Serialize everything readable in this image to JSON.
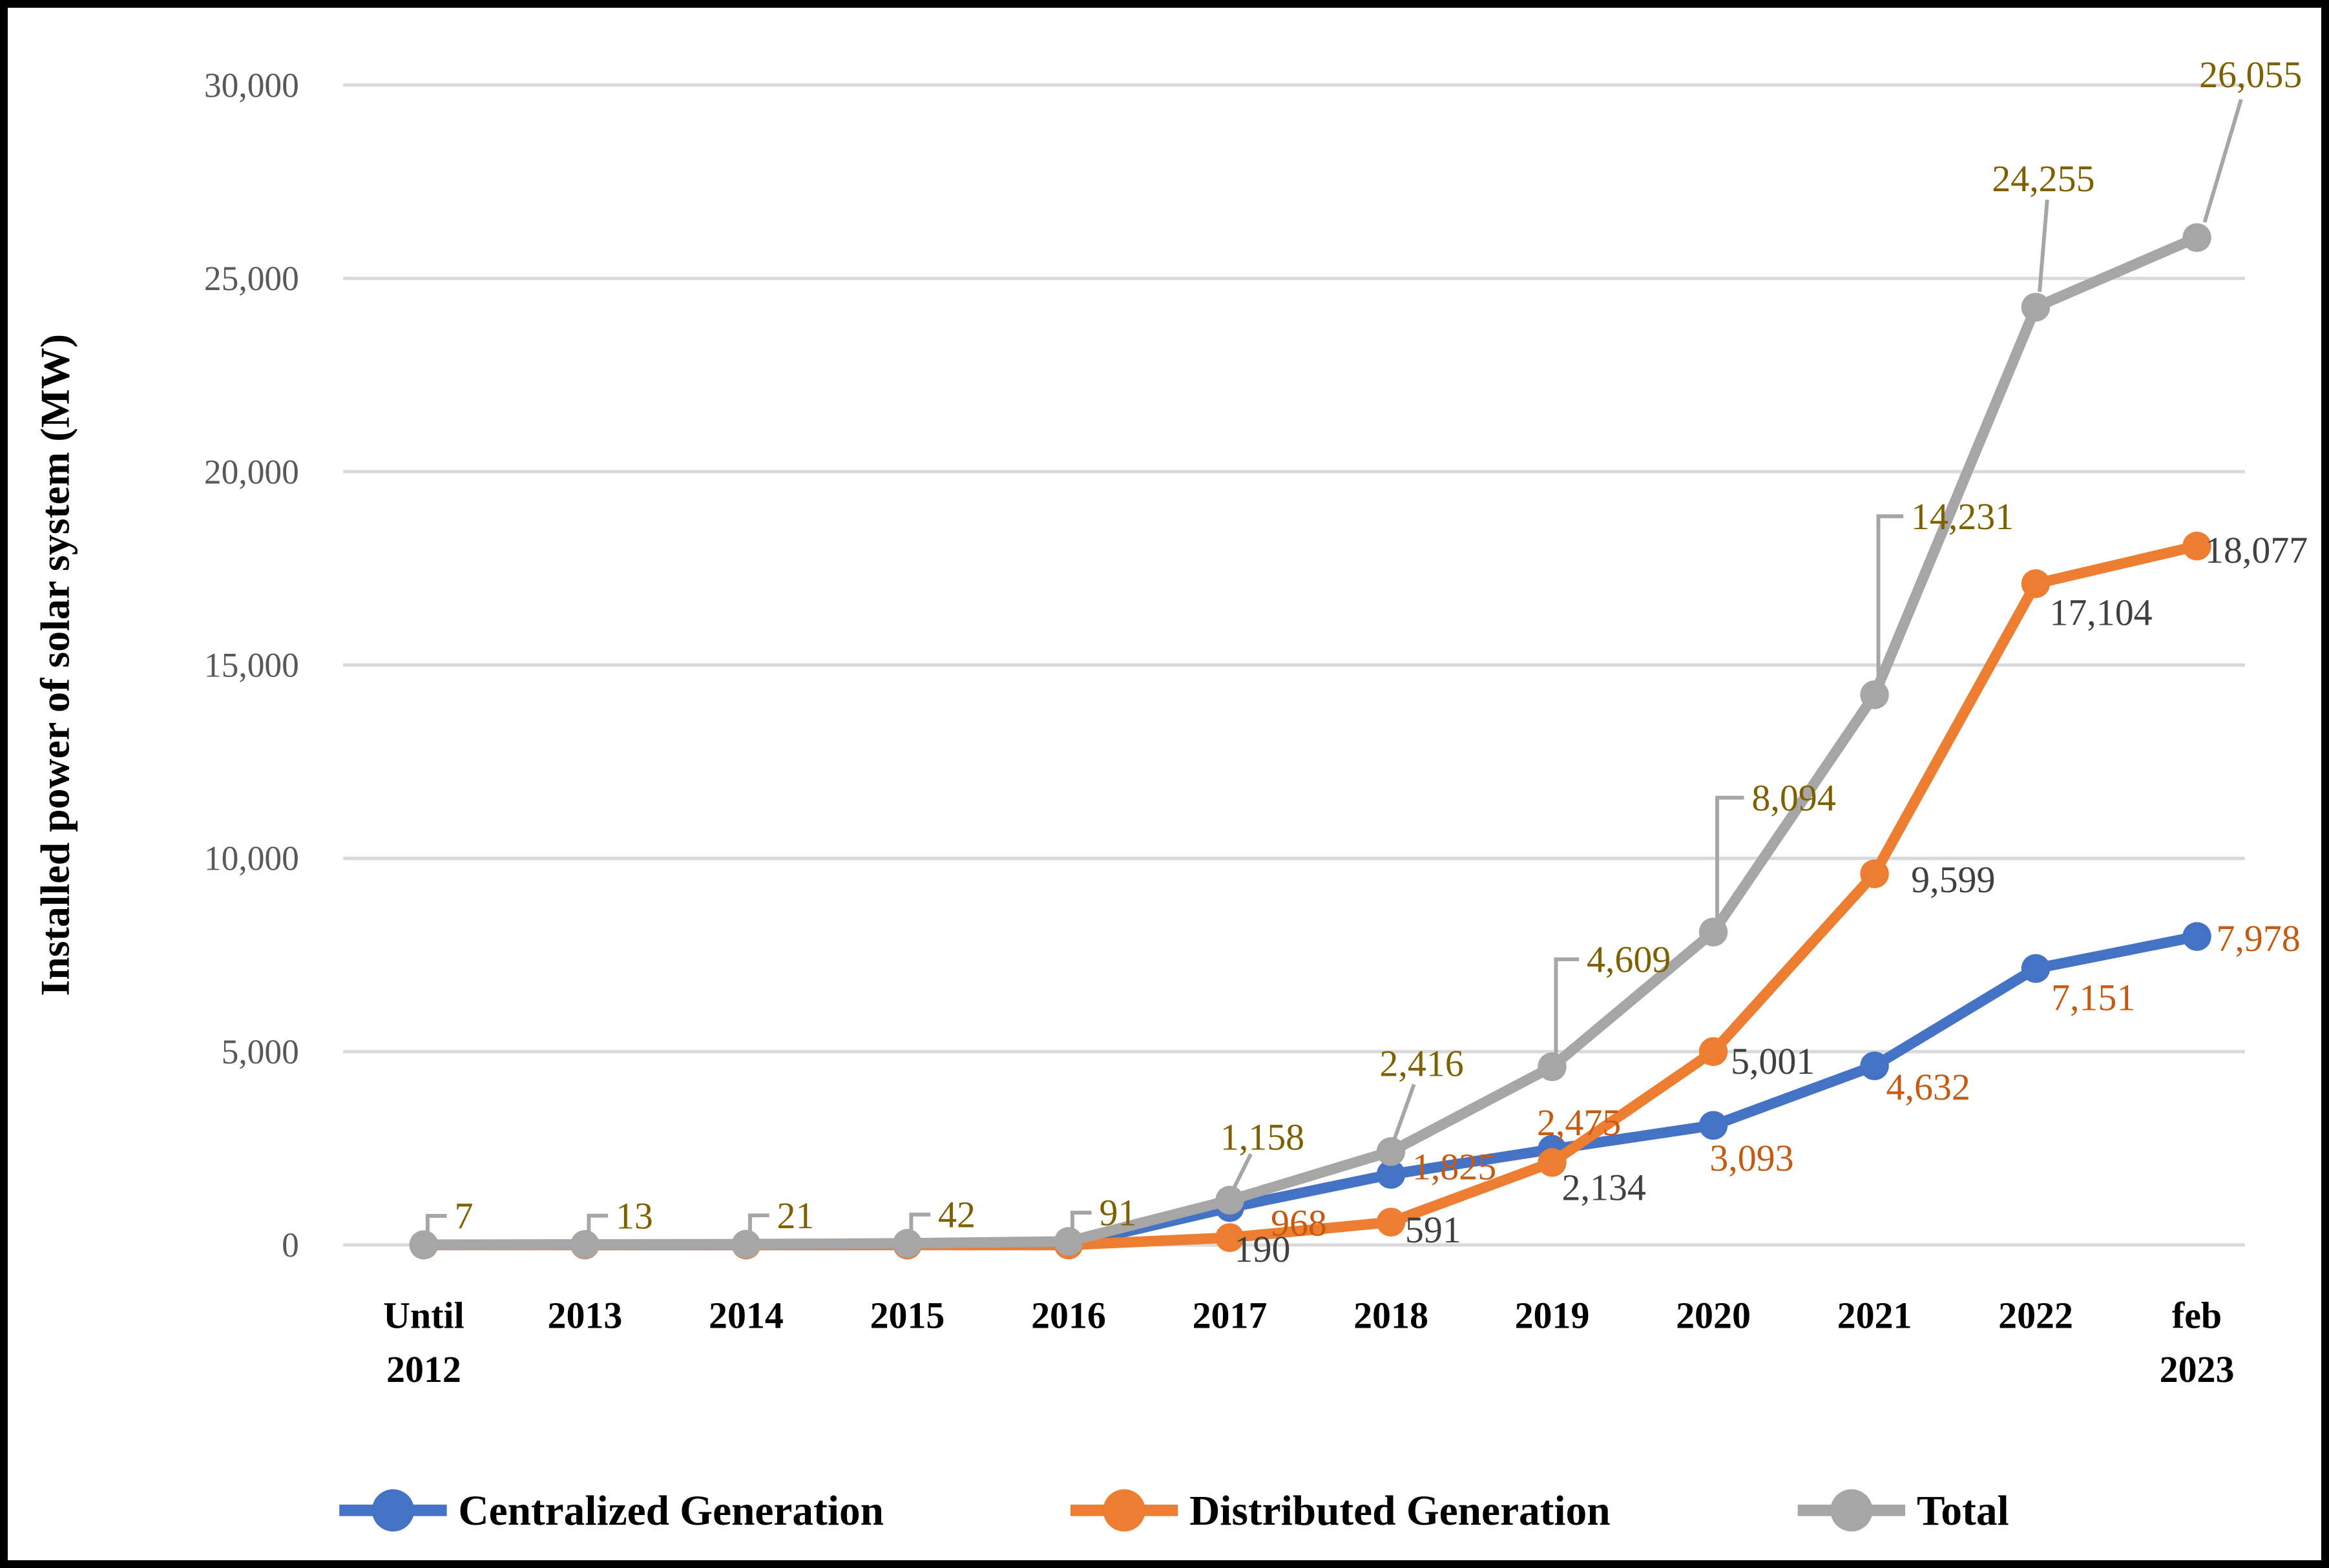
{
  "figure": {
    "kind": "excel-line-chart",
    "background": "#ffffff",
    "border_color": "#000000"
  },
  "chart_data": {
    "type": "line",
    "title": "",
    "xlabel": "",
    "ylabel": "Installed power of solar system (MW)",
    "ylim": [
      0,
      30000
    ],
    "ytick_step": 5000,
    "ytick_labels": [
      "0",
      "5,000",
      "10,000",
      "15,000",
      "20,000",
      "25,000",
      "30,000"
    ],
    "grid": true,
    "legend_position": "bottom",
    "categories": [
      "Until 2012",
      "2013",
      "2014",
      "2015",
      "2016",
      "2017",
      "2018",
      "2019",
      "2020",
      "2021",
      "2022",
      "feb 2023"
    ],
    "categories_display": [
      [
        "Until",
        "2012"
      ],
      [
        "2013"
      ],
      [
        "2014"
      ],
      [
        "2015"
      ],
      [
        "2016"
      ],
      [
        "2017"
      ],
      [
        "2018"
      ],
      [
        "2019"
      ],
      [
        "2020"
      ],
      [
        "2021"
      ],
      [
        "2022"
      ],
      [
        "feb",
        "2023"
      ]
    ],
    "series": [
      {
        "name": "Centralized Generation",
        "color": "#4472C4",
        "label_color": "#C55A11",
        "values": [
          0,
          0,
          0,
          0,
          0,
          968,
          1825,
          2475,
          3093,
          4632,
          7151,
          7978
        ],
        "labels": [
          null,
          null,
          null,
          null,
          null,
          "968",
          "1,825",
          "2,475",
          "3,093",
          "4,632",
          "7,151",
          "7,978"
        ]
      },
      {
        "name": "Distributed Generation",
        "color": "#ED7D31",
        "label_color": "#404040",
        "values": [
          0,
          0,
          0,
          0,
          0,
          190,
          591,
          2134,
          5001,
          9599,
          17104,
          18077
        ],
        "labels": [
          null,
          null,
          null,
          null,
          null,
          "190",
          "591",
          "2,134",
          "5,001",
          "9,599",
          "17,104",
          "18,077"
        ]
      },
      {
        "name": "Total",
        "color": "#A6A6A6",
        "label_color": "#7F6000",
        "values": [
          7,
          13,
          21,
          42,
          91,
          1158,
          2416,
          4609,
          8094,
          14231,
          24255,
          26055
        ],
        "labels": [
          "7",
          "13",
          "21",
          "42",
          "91",
          "1,158",
          "2,416",
          "4,609",
          "8,094",
          "14,231",
          "24,255",
          "26,055"
        ]
      }
    ],
    "colors": {
      "gridline": "#D9D9D9",
      "tick_label": "#595959",
      "leader_line": "#A6A6A6",
      "axis_text": "#000000"
    }
  }
}
